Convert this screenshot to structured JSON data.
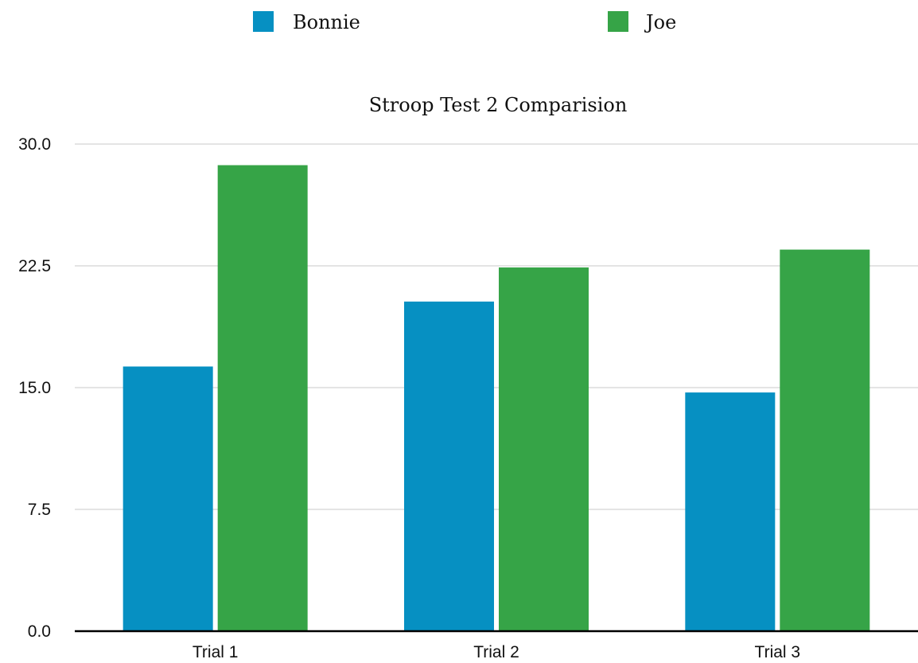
{
  "chart_data": {
    "type": "bar",
    "title": "Stroop Test 2 Comparision",
    "xlabel": "",
    "ylabel": "",
    "categories": [
      "Trial 1",
      "Trial 2",
      "Trial 3"
    ],
    "series": [
      {
        "name": "Bonnie",
        "color": "#0690c2",
        "values": [
          16.3,
          20.3,
          14.7
        ]
      },
      {
        "name": "Joe",
        "color": "#36a447",
        "values": [
          28.7,
          22.4,
          23.5
        ]
      }
    ],
    "ylim": [
      0,
      30
    ],
    "yticks": [
      "0.0",
      "7.5",
      "15.0",
      "22.5",
      "30.0"
    ],
    "ytick_values": [
      0,
      7.5,
      15,
      22.5,
      30
    ],
    "grid": true,
    "legend_position": "top"
  }
}
